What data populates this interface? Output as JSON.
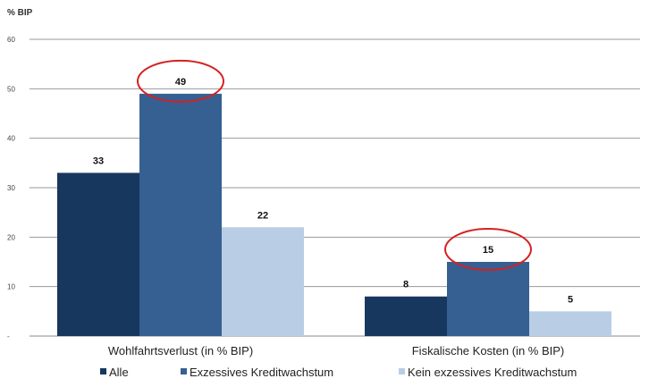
{
  "chart_data": {
    "type": "bar",
    "ylabel": "% BIP",
    "ylim": [
      0,
      60
    ],
    "yticks": [
      0,
      10,
      20,
      30,
      40,
      50,
      60
    ],
    "grid": true,
    "categories": [
      "Wohlfahrtsverlust (in % BIP)",
      "Fiskalische Kosten (in % BIP)"
    ],
    "series": [
      {
        "name": "Alle",
        "values": [
          33,
          8
        ],
        "color": "#17375e"
      },
      {
        "name": "Exzessives Kreditwachstum",
        "values": [
          49,
          15
        ],
        "color": "#366092"
      },
      {
        "name": "Kein exzessives Kreditwachstum",
        "values": [
          22,
          5
        ],
        "color": "#b9cde5"
      }
    ],
    "highlighted": [
      {
        "series": "Exzessives Kreditwachstum",
        "category": "Wohlfahrtsverlust (in % BIP)"
      },
      {
        "series": "Exzessives Kreditwachstum",
        "category": "Fiskalische Kosten (in % BIP)"
      }
    ],
    "highlight_color": "#d62020",
    "legend_placement": "bottom"
  }
}
